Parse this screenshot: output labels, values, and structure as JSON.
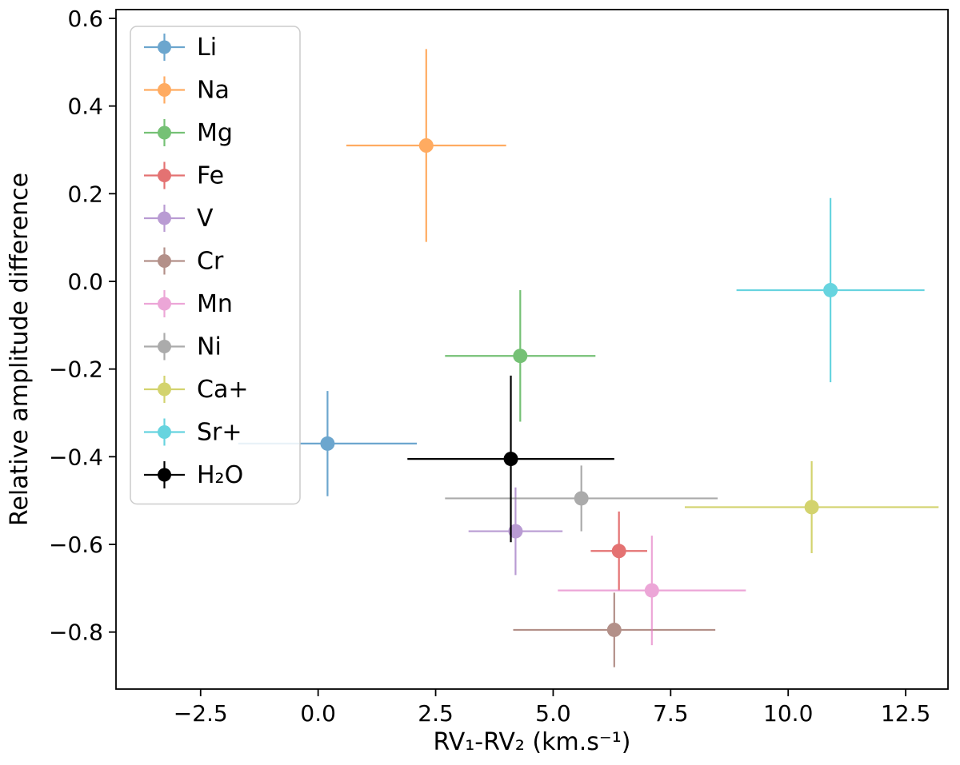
{
  "figure": {
    "background_color": "#ffffff",
    "spine_color": "#000000",
    "legend_border_color": "#cccccc",
    "legend_fill_color": "#ffffff"
  },
  "chart_data": {
    "type": "scatter",
    "title": "",
    "xlabel": "RV₁-RV₂ (km.s⁻¹)",
    "ylabel": "Relative amplitude difference",
    "xlim": [
      -4.3,
      13.4
    ],
    "ylim": [
      -0.93,
      0.62
    ],
    "grid": false,
    "legend_position": "upper left",
    "xticks": {
      "values": [
        -2.5,
        0.0,
        2.5,
        5.0,
        7.5,
        10.0,
        12.5
      ],
      "labels": [
        "−2.5",
        "0.0",
        "2.5",
        "5.0",
        "7.5",
        "10.0",
        "12.5"
      ]
    },
    "yticks": {
      "values": [
        0.6,
        0.4,
        0.2,
        0.0,
        -0.2,
        -0.4,
        -0.6,
        -0.8
      ],
      "labels": [
        "0.6",
        "0.4",
        "0.2",
        "0.0",
        "−0.2",
        "−0.4",
        "−0.6",
        "−0.8"
      ]
    },
    "series": [
      {
        "name": "Li",
        "color": "#1f77b4",
        "alpha": 0.65,
        "x": 0.2,
        "y": -0.37,
        "xerr": 1.9,
        "yerr": 0.12
      },
      {
        "name": "Na",
        "color": "#ff7f0e",
        "alpha": 0.65,
        "x": 2.3,
        "y": 0.31,
        "xerr": 1.7,
        "yerr": 0.22
      },
      {
        "name": "Mg",
        "color": "#2ca02c",
        "alpha": 0.65,
        "x": 4.3,
        "y": -0.17,
        "xerr": 1.6,
        "yerr": 0.15
      },
      {
        "name": "Fe",
        "color": "#d62728",
        "alpha": 0.65,
        "x": 6.4,
        "y": -0.615,
        "xerr": 0.6,
        "yerr": 0.09
      },
      {
        "name": "V",
        "color": "#9467bd",
        "alpha": 0.65,
        "x": 4.2,
        "y": -0.57,
        "xerr": 1.0,
        "yerr": 0.1
      },
      {
        "name": "Cr",
        "color": "#8c564b",
        "alpha": 0.65,
        "x": 6.3,
        "y": -0.795,
        "xerr": 2.15,
        "yerr": 0.085
      },
      {
        "name": "Mn",
        "color": "#e377c2",
        "alpha": 0.65,
        "x": 7.1,
        "y": -0.705,
        "xerr": 2.0,
        "yerr": 0.125
      },
      {
        "name": "Ni",
        "color": "#7f7f7f",
        "alpha": 0.65,
        "x": 5.6,
        "y": -0.495,
        "xerr": 2.9,
        "yerr": 0.075
      },
      {
        "name": "Ca+",
        "color": "#bcbd22",
        "alpha": 0.65,
        "x": 10.5,
        "y": -0.515,
        "xerr": 2.7,
        "yerr": 0.105
      },
      {
        "name": "Sr+",
        "color": "#17becf",
        "alpha": 0.65,
        "x": 10.9,
        "y": -0.02,
        "xerr": 2.0,
        "yerr": 0.21
      },
      {
        "name": "H₂O",
        "color": "#000000",
        "alpha": 1.0,
        "x": 4.1,
        "y": -0.405,
        "xerr": 2.2,
        "yerr": 0.19
      }
    ]
  }
}
